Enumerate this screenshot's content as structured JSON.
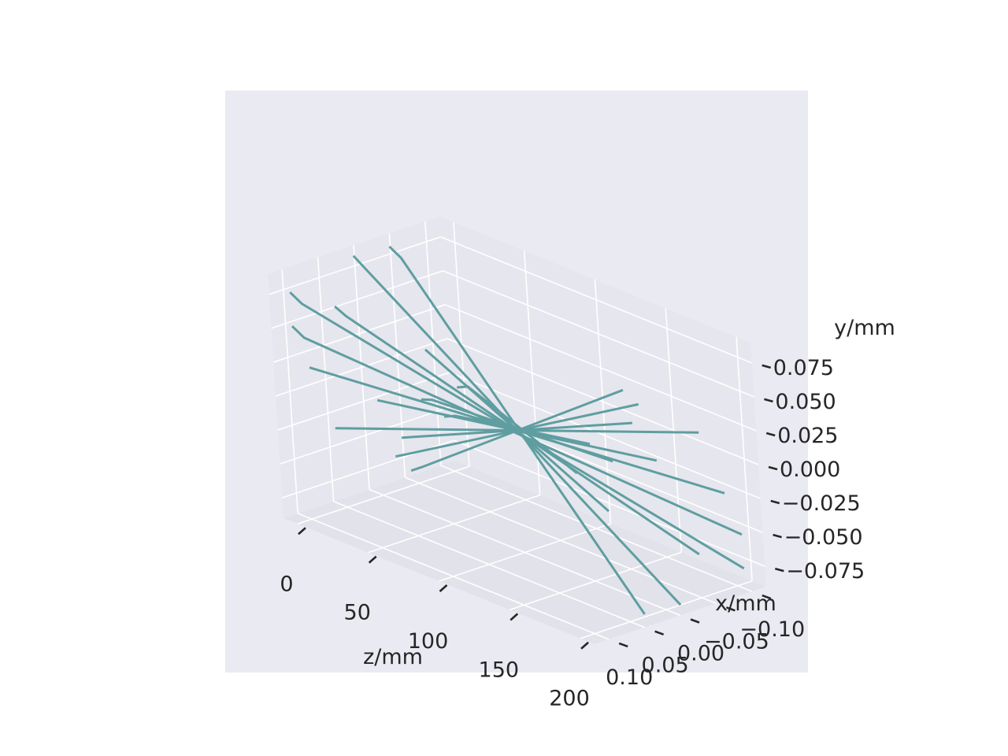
{
  "chart_data": {
    "type": "line3d",
    "title": "",
    "xlabel": "x/mm",
    "ylabel": "y/mm",
    "zlabel": "z/mm",
    "xlim": [
      -0.12,
      0.12
    ],
    "ylim": [
      -0.09,
      0.09
    ],
    "zlim": [
      -10,
      210
    ],
    "x_ticks": [
      "−0.10",
      "−0.05",
      "0.00",
      "0.05",
      "0.10"
    ],
    "y_ticks": [
      "−0.075",
      "−0.050",
      "−0.025",
      "0.000",
      "0.025",
      "0.050",
      "0.075"
    ],
    "z_ticks": [
      "0",
      "50",
      "100",
      "150",
      "200"
    ],
    "grid": true,
    "colors": {
      "line": "#5f9ea0",
      "panel_background": "#eaeaf2",
      "pane_floor": "#e2e2ea",
      "pane_side": "#e6e6ee",
      "grid": "#ffffff",
      "text": "#262626"
    },
    "series": [
      {
        "values": [
          [
            0,
            0.11,
            0.079
          ],
          [
            8,
            0.11,
            0.074
          ],
          [
            200,
            -0.11,
            -0.079
          ]
        ]
      },
      {
        "values": [
          [
            0,
            0.11,
            0.054
          ],
          [
            8,
            0.11,
            0.049
          ],
          [
            200,
            -0.11,
            -0.054
          ]
        ]
      },
      {
        "values": [
          [
            0,
            0.02,
            0.09
          ],
          [
            8,
            0.02,
            0.084
          ],
          [
            200,
            -0.02,
            -0.09
          ]
        ]
      },
      {
        "values": [
          [
            0,
            -0.03,
            0.088
          ],
          [
            8,
            -0.03,
            0.083
          ],
          [
            200,
            0.03,
            -0.088
          ]
        ]
      },
      {
        "values": [
          [
            0,
            0.05,
            0.058
          ],
          [
            8,
            0.05,
            0.054
          ],
          [
            200,
            -0.05,
            -0.058
          ]
        ]
      },
      {
        "values": [
          [
            0,
            0.09,
            0.02
          ],
          [
            200,
            -0.09,
            -0.02
          ]
        ]
      },
      {
        "values": [
          [
            0,
            -0.07,
            0.005
          ],
          [
            200,
            0.07,
            -0.005
          ]
        ]
      },
      {
        "values": [
          [
            0,
            -0.06,
            -0.03
          ],
          [
            8,
            -0.06,
            -0.027
          ],
          [
            200,
            0.06,
            0.03
          ]
        ]
      },
      {
        "values": [
          [
            0,
            -0.03,
            -0.053
          ],
          [
            8,
            -0.03,
            -0.049
          ],
          [
            200,
            0.03,
            0.053
          ]
        ]
      },
      {
        "values": [
          [
            0,
            -0.09,
            -0.048
          ],
          [
            8,
            -0.09,
            -0.044
          ],
          [
            200,
            0.09,
            0.048
          ]
        ]
      },
      {
        "values": [
          [
            0,
            -0.11,
            -0.03
          ],
          [
            8,
            -0.11,
            -0.026
          ],
          [
            200,
            0.11,
            0.03
          ]
        ]
      },
      {
        "values": [
          [
            0,
            0.0,
            -0.02
          ],
          [
            200,
            0.0,
            0.02
          ]
        ]
      },
      {
        "values": [
          [
            0,
            -0.04,
            -0.079
          ],
          [
            8,
            -0.04,
            -0.073
          ],
          [
            200,
            0.04,
            0.079
          ]
        ]
      },
      {
        "values": [
          [
            0,
            -0.02,
            -0.065
          ],
          [
            8,
            -0.02,
            -0.06
          ],
          [
            200,
            0.02,
            0.065
          ]
        ]
      },
      {
        "values": [
          [
            0,
            0.06,
            -0.03
          ],
          [
            200,
            -0.06,
            0.03
          ]
        ]
      }
    ]
  }
}
